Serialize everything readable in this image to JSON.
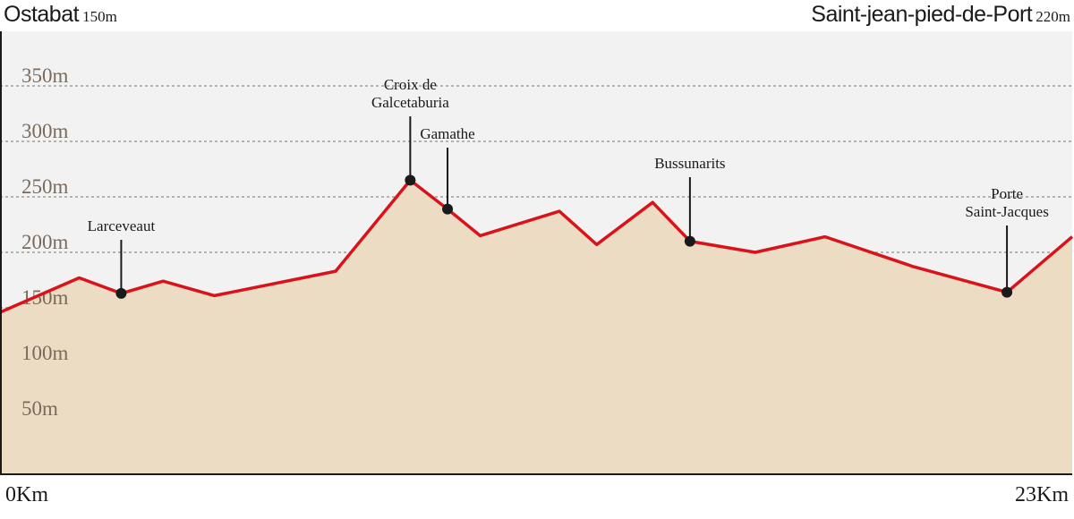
{
  "header": {
    "start": {
      "name": "Ostabat",
      "altitude": "150m"
    },
    "end": {
      "name": "Saint-jean-pied-de-Port",
      "altitude": "220m"
    }
  },
  "axis": {
    "distance_start": "0Km",
    "distance_end": "23Km"
  },
  "colors": {
    "background": "#f2f2f2",
    "terrain_fill": "#ecdcc4",
    "profile_line": "#d8131b",
    "grid": "#b3b3b3",
    "tick_label": "#7a6a5c",
    "marker": "#1a1a1a"
  },
  "chart_data": {
    "type": "area",
    "title": "",
    "xlabel": "",
    "ylabel": "",
    "xlim": [
      0,
      23
    ],
    "ylim": [
      0,
      400
    ],
    "grid": true,
    "y_ticks": [
      {
        "value": 50,
        "label": "50m"
      },
      {
        "value": 100,
        "label": "100m"
      },
      {
        "value": 150,
        "label": "150m"
      },
      {
        "value": 200,
        "label": "200m"
      },
      {
        "value": 250,
        "label": "250m"
      },
      {
        "value": 300,
        "label": "300m"
      },
      {
        "value": 350,
        "label": "350m"
      }
    ],
    "x": [
      0,
      1.7,
      2.6,
      3.5,
      4.6,
      7.2,
      8.8,
      9.6,
      10.3,
      12.0,
      12.8,
      14.0,
      14.8,
      16.2,
      17.7,
      19.6,
      21.6,
      23.0
    ],
    "y": [
      146,
      177,
      163,
      174,
      161,
      183,
      265,
      239,
      215,
      237,
      207,
      245,
      210,
      200,
      214,
      187,
      164,
      214
    ],
    "waypoints": [
      {
        "name": "Larceveaut",
        "x": 2.6,
        "y": 163
      },
      {
        "name": "Croix de\nGalcetaburia",
        "x": 8.8,
        "y": 265
      },
      {
        "name": "Gamathe",
        "x": 9.6,
        "y": 239
      },
      {
        "name": "Bussunarits",
        "x": 14.8,
        "y": 210
      },
      {
        "name": "Porte\nSaint-Jacques",
        "x": 21.6,
        "y": 164
      }
    ]
  }
}
